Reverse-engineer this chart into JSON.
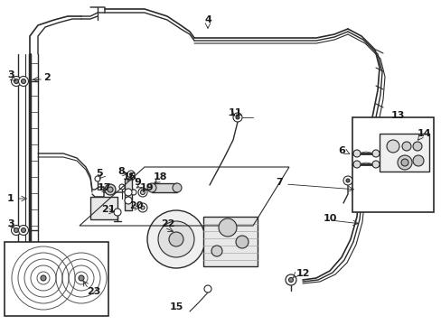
{
  "bg_color": "#ffffff",
  "line_color": "#2a2a2a",
  "lw": 1.0,
  "label_fs": 8,
  "figsize": [
    4.89,
    3.6
  ],
  "dpi": 100
}
